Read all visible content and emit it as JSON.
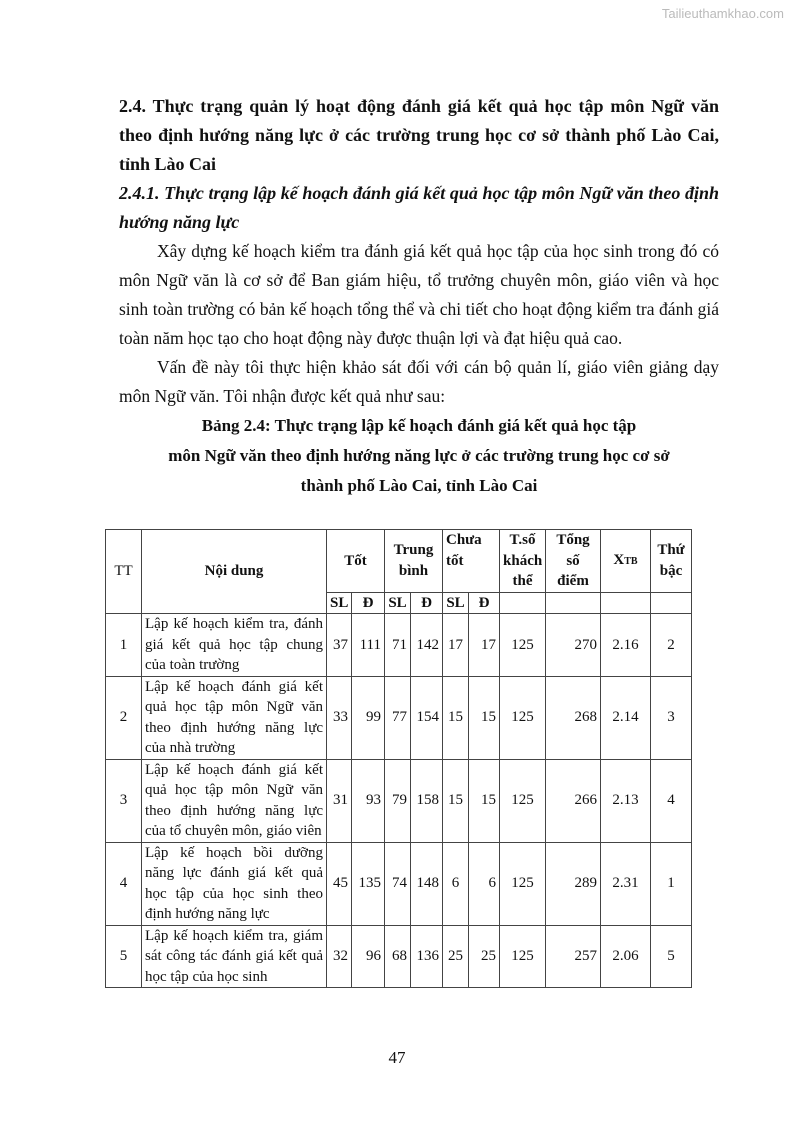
{
  "watermark": "Tailieuthamkhao.com",
  "heading_2_4": "2.4. Thực trạng quản lý hoạt động đánh giá kết quả học tập môn Ngữ văn theo định hướng năng lực ở các trường trung học cơ sở thành phố Lào Cai, tỉnh Lào Cai",
  "heading_2_4_1": "2.4.1. Thực trạng lập kế hoạch đánh giá kết quả học tập môn Ngữ văn theo định hướng năng lực",
  "paragraphs": [
    "Xây dựng kế hoạch kiểm tra đánh giá kết quả học tập của học sinh trong đó có môn Ngữ văn là cơ sở để Ban giám hiệu, tổ trưởng chuyên môn, giáo viên và học sinh toàn trường có bản kế hoạch tổng thể và chi tiết cho hoạt động kiểm tra đánh giá toàn năm học tạo cho hoạt động này được thuận lợi và đạt hiệu quả cao.",
    "Vấn đề này tôi thực hiện khảo sát đối với cán bộ quản lí, giáo viên giảng dạy môn Ngữ văn. Tôi nhận được kết quả như sau:"
  ],
  "table_caption": [
    "Bảng 2.4: Thực trạng lập kế hoạch đánh giá kết quả học tập",
    "môn Ngữ văn theo định hướng năng lực ở các trường trung học cơ sở",
    "thành phố Lào Cai, tỉnh Lào Cai"
  ],
  "table": {
    "headers": {
      "tt": "TT",
      "noi_dung": "Nội dung",
      "tot": "Tốt",
      "trung_binh": "Trung bình",
      "chua_tot": "Chưa tốt",
      "tso": "T.số khách thể",
      "tong": "Tổng số điểm",
      "xtb_main": "X",
      "xtb_sub": "TB",
      "thu_bac": "Thứ bậc",
      "sl": "SL",
      "d": "Đ"
    },
    "rows": [
      {
        "tt": "1",
        "nd": "Lập kế hoạch kiểm tra, đánh giá kết quả học tập chung của toàn trường",
        "tot_sl": "37",
        "tot_d": "111",
        "tb_sl": "71",
        "tb_d": "142",
        "ct_sl": "17",
        "ct_d": "17",
        "tso": "125",
        "tong": "270",
        "xtb": "2.16",
        "rank": "2"
      },
      {
        "tt": "2",
        "nd": "Lập kế hoạch đánh giá kết quả học tập môn Ngữ văn theo định hướng năng lực của nhà trường",
        "tot_sl": "33",
        "tot_d": "99",
        "tb_sl": "77",
        "tb_d": "154",
        "ct_sl": "15",
        "ct_d": "15",
        "tso": "125",
        "tong": "268",
        "xtb": "2.14",
        "rank": "3"
      },
      {
        "tt": "3",
        "nd": "Lập kế hoạch đánh giá kết quả học tập môn Ngữ văn theo định hướng năng lực của tổ chuyên môn, giáo viên",
        "tot_sl": "31",
        "tot_d": "93",
        "tb_sl": "79",
        "tb_d": "158",
        "ct_sl": "15",
        "ct_d": "15",
        "tso": "125",
        "tong": "266",
        "xtb": "2.13",
        "rank": "4"
      },
      {
        "tt": "4",
        "nd": "Lập kế hoạch bồi dưỡng năng lực đánh giá kết quả học tập của học sinh theo định hướng năng lực",
        "tot_sl": "45",
        "tot_d": "135",
        "tb_sl": "74",
        "tb_d": "148",
        "ct_sl": "6",
        "ct_d": "6",
        "tso": "125",
        "tong": "289",
        "xtb": "2.31",
        "rank": "1"
      },
      {
        "tt": "5",
        "nd": "Lập kế hoạch kiểm tra, giám sát công tác đánh giá kết quả học tập của học sinh",
        "tot_sl": "32",
        "tot_d": "96",
        "tb_sl": "68",
        "tb_d": "136",
        "ct_sl": "25",
        "ct_d": "25",
        "tso": "125",
        "tong": "257",
        "xtb": "2.06",
        "rank": "5"
      }
    ]
  },
  "page_number": "47"
}
